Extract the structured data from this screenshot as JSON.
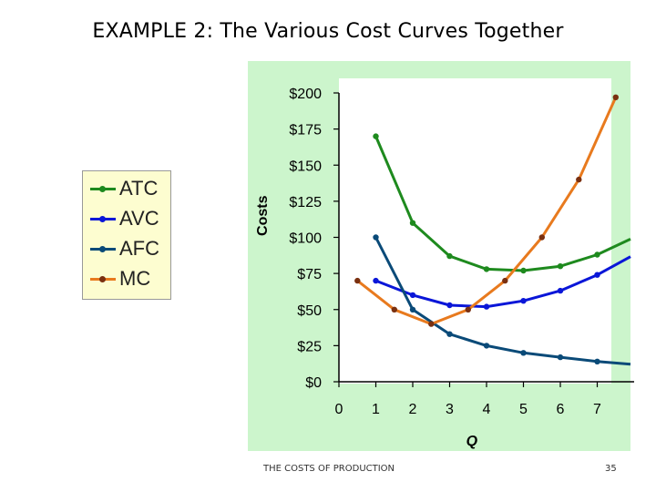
{
  "slide": {
    "title": "EXAMPLE 2:  The Various Cost Curves Together",
    "footer_left": "THE COSTS OF PRODUCTION",
    "page_number": "35"
  },
  "colors": {
    "panel_bg": "#ccf5cc",
    "plot_bg": "#ffffff",
    "legend_bg": "#fdfdd0",
    "atc": "#1e8a1e",
    "avc": "#0a16d8",
    "afc": "#0a4a78",
    "mc": "#e87a1e",
    "marker": "#7a3010"
  },
  "chart_data": {
    "type": "line",
    "title": "",
    "xlabel": "Q",
    "ylabel": "Costs",
    "xlim": [
      0,
      8
    ],
    "ylim": [
      0,
      200
    ],
    "x_ticks": [
      "0",
      "1",
      "2",
      "3",
      "4",
      "5",
      "6",
      "7"
    ],
    "y_ticks": [
      "$0",
      "$25",
      "$50",
      "$75",
      "$100",
      "$125",
      "$150",
      "$175",
      "$200"
    ],
    "y_tick_values": [
      0,
      25,
      50,
      75,
      100,
      125,
      150,
      175,
      200
    ],
    "legend": {
      "position": "left",
      "entries": [
        "ATC",
        "AVC",
        "AFC",
        "MC"
      ]
    },
    "series": [
      {
        "name": "ATC",
        "x": [
          1,
          2,
          3,
          4,
          5,
          6,
          7,
          8
        ],
        "y": [
          170,
          110,
          87,
          78,
          77,
          80,
          88,
          100
        ]
      },
      {
        "name": "AVC",
        "x": [
          1,
          2,
          3,
          4,
          5,
          6,
          7,
          8
        ],
        "y": [
          70,
          60,
          53,
          52,
          56,
          63,
          74,
          88
        ]
      },
      {
        "name": "AFC",
        "x": [
          1,
          2,
          3,
          4,
          5,
          6,
          7,
          8
        ],
        "y": [
          100,
          50,
          33,
          25,
          20,
          17,
          14,
          12
        ]
      },
      {
        "name": "MC",
        "x": [
          0.5,
          1.5,
          2.5,
          3.5,
          4.5,
          5.5,
          6.5,
          7.5
        ],
        "y": [
          70,
          50,
          40,
          50,
          70,
          100,
          140,
          197
        ]
      }
    ]
  }
}
